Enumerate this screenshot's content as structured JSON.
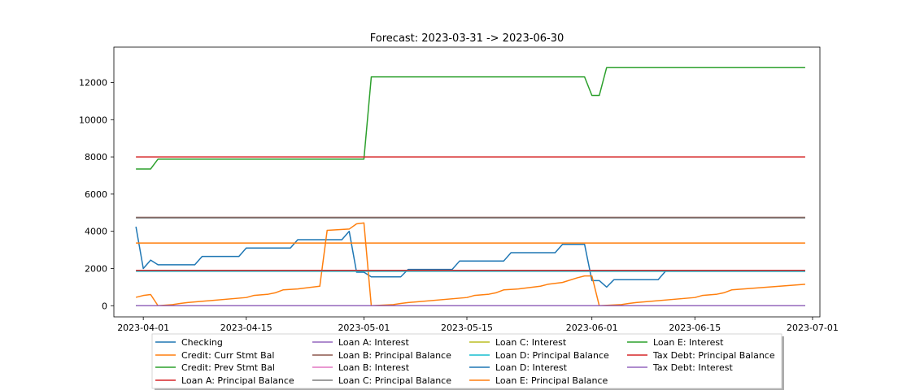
{
  "chart_data": {
    "type": "line",
    "title": "Forecast: 2023-03-31 -> 2023-06-30",
    "xlabel": "",
    "ylabel": "",
    "x_range": [
      "2023-03-28",
      "2023-07-02"
    ],
    "ylim": [
      -600,
      13900
    ],
    "x_ticks": [
      "2023-04-01",
      "2023-04-15",
      "2023-05-01",
      "2023-05-15",
      "2023-06-01",
      "2023-06-15",
      "2023-07-01"
    ],
    "y_ticks": [
      0,
      2000,
      4000,
      6000,
      8000,
      10000,
      12000
    ],
    "legend_position": "bottom-center",
    "colors": {
      "blue": "#1f77b4",
      "orange": "#ff7f0e",
      "green": "#2ca02c",
      "red": "#d62728",
      "purple": "#9467bd",
      "brown": "#8c564b",
      "pink": "#e377c2",
      "gray": "#7f7f7f",
      "olive": "#bcbd22",
      "cyan": "#17becf"
    },
    "series": [
      {
        "name": "Checking",
        "color": "#1f77b4",
        "points": [
          [
            "2023-03-31",
            4250
          ],
          [
            "2023-04-01",
            2000
          ],
          [
            "2023-04-02",
            2450
          ],
          [
            "2023-04-03",
            2200
          ],
          [
            "2023-04-08",
            2200
          ],
          [
            "2023-04-09",
            2650
          ],
          [
            "2023-04-14",
            2650
          ],
          [
            "2023-04-15",
            3100
          ],
          [
            "2023-04-21",
            3100
          ],
          [
            "2023-04-22",
            3550
          ],
          [
            "2023-04-28",
            3550
          ],
          [
            "2023-04-29",
            4000
          ],
          [
            "2023-04-30",
            1800
          ],
          [
            "2023-05-01",
            1800
          ],
          [
            "2023-05-02",
            1550
          ],
          [
            "2023-05-06",
            1550
          ],
          [
            "2023-05-07",
            1950
          ],
          [
            "2023-05-13",
            1950
          ],
          [
            "2023-05-14",
            2400
          ],
          [
            "2023-05-20",
            2400
          ],
          [
            "2023-05-21",
            2850
          ],
          [
            "2023-05-27",
            2850
          ],
          [
            "2023-05-28",
            3300
          ],
          [
            "2023-05-31",
            3300
          ],
          [
            "2023-06-01",
            1350
          ],
          [
            "2023-06-02",
            1350
          ],
          [
            "2023-06-03",
            1000
          ],
          [
            "2023-06-04",
            1400
          ],
          [
            "2023-06-10",
            1400
          ],
          [
            "2023-06-11",
            1850
          ],
          [
            "2023-06-30",
            1850
          ]
        ]
      },
      {
        "name": "Credit: Curr Stmt Bal",
        "color": "#ff7f0e",
        "points": [
          [
            "2023-03-31",
            450
          ],
          [
            "2023-04-01",
            550
          ],
          [
            "2023-04-02",
            600
          ],
          [
            "2023-04-03",
            0
          ],
          [
            "2023-04-05",
            60
          ],
          [
            "2023-04-06",
            120
          ],
          [
            "2023-04-07",
            170
          ],
          [
            "2023-04-15",
            440
          ],
          [
            "2023-04-16",
            550
          ],
          [
            "2023-04-18",
            620
          ],
          [
            "2023-04-19",
            700
          ],
          [
            "2023-04-20",
            850
          ],
          [
            "2023-04-22",
            900
          ],
          [
            "2023-04-25",
            1050
          ],
          [
            "2023-04-26",
            4050
          ],
          [
            "2023-04-29",
            4120
          ],
          [
            "2023-04-30",
            4400
          ],
          [
            "2023-05-01",
            4450
          ],
          [
            "2023-05-02",
            0
          ],
          [
            "2023-05-05",
            60
          ],
          [
            "2023-05-06",
            120
          ],
          [
            "2023-05-07",
            170
          ],
          [
            "2023-05-15",
            440
          ],
          [
            "2023-05-16",
            550
          ],
          [
            "2023-05-18",
            620
          ],
          [
            "2023-05-19",
            700
          ],
          [
            "2023-05-20",
            850
          ],
          [
            "2023-05-22",
            900
          ],
          [
            "2023-05-25",
            1050
          ],
          [
            "2023-05-26",
            1150
          ],
          [
            "2023-05-28",
            1250
          ],
          [
            "2023-05-30",
            1500
          ],
          [
            "2023-05-31",
            1600
          ],
          [
            "2023-06-01",
            1600
          ],
          [
            "2023-06-02",
            0
          ],
          [
            "2023-06-05",
            60
          ],
          [
            "2023-06-06",
            120
          ],
          [
            "2023-06-07",
            170
          ],
          [
            "2023-06-15",
            440
          ],
          [
            "2023-06-16",
            550
          ],
          [
            "2023-06-18",
            620
          ],
          [
            "2023-06-19",
            700
          ],
          [
            "2023-06-20",
            850
          ],
          [
            "2023-06-30",
            1150
          ]
        ]
      },
      {
        "name": "Credit: Prev Stmt Bal",
        "color": "#2ca02c",
        "points": [
          [
            "2023-03-31",
            7350
          ],
          [
            "2023-04-02",
            7350
          ],
          [
            "2023-04-03",
            7880
          ],
          [
            "2023-05-01",
            7880
          ],
          [
            "2023-05-02",
            12300
          ],
          [
            "2023-05-31",
            12300
          ],
          [
            "2023-06-01",
            11300
          ],
          [
            "2023-06-02",
            11300
          ],
          [
            "2023-06-03",
            12800
          ],
          [
            "2023-06-30",
            12800
          ]
        ]
      },
      {
        "name": "Loan A: Principal Balance",
        "color": "#d62728",
        "points": [
          [
            "2023-03-31",
            8000
          ],
          [
            "2023-06-30",
            8000
          ]
        ]
      },
      {
        "name": "Loan A: Interest",
        "color": "#9467bd",
        "points": [
          [
            "2023-03-31",
            0
          ],
          [
            "2023-06-30",
            0
          ]
        ]
      },
      {
        "name": "Loan B: Principal Balance",
        "color": "#8c564b",
        "points": [
          [
            "2023-03-31",
            4750
          ],
          [
            "2023-06-30",
            4750
          ]
        ]
      },
      {
        "name": "Loan B: Interest",
        "color": "#e377c2",
        "points": [
          [
            "2023-03-31",
            0
          ],
          [
            "2023-06-30",
            0
          ]
        ]
      },
      {
        "name": "Loan C: Principal Balance",
        "color": "#7f7f7f",
        "points": [
          [
            "2023-03-31",
            4720
          ],
          [
            "2023-06-30",
            4720
          ]
        ]
      },
      {
        "name": "Loan C: Interest",
        "color": "#bcbd22",
        "points": [
          [
            "2023-03-31",
            0
          ],
          [
            "2023-06-30",
            0
          ]
        ]
      },
      {
        "name": "Loan D: Principal Balance",
        "color": "#17becf",
        "points": [
          [
            "2023-03-31",
            1850
          ],
          [
            "2023-06-30",
            1850
          ]
        ]
      },
      {
        "name": "Loan D: Interest",
        "color": "#1f77b4",
        "points": [
          [
            "2023-03-31",
            0
          ],
          [
            "2023-06-30",
            0
          ]
        ]
      },
      {
        "name": "Loan E: Principal Balance",
        "color": "#ff7f0e",
        "points": [
          [
            "2023-03-31",
            3370
          ],
          [
            "2023-06-30",
            3370
          ]
        ]
      },
      {
        "name": "Loan E: Interest",
        "color": "#2ca02c",
        "points": [
          [
            "2023-03-31",
            0
          ],
          [
            "2023-06-30",
            0
          ]
        ]
      },
      {
        "name": "Tax Debt: Principal Balance",
        "color": "#d62728",
        "points": [
          [
            "2023-03-31",
            1900
          ],
          [
            "2023-06-30",
            1900
          ]
        ]
      },
      {
        "name": "Tax Debt: Interest",
        "color": "#9467bd",
        "points": [
          [
            "2023-03-31",
            0
          ],
          [
            "2023-06-30",
            0
          ]
        ]
      }
    ]
  }
}
